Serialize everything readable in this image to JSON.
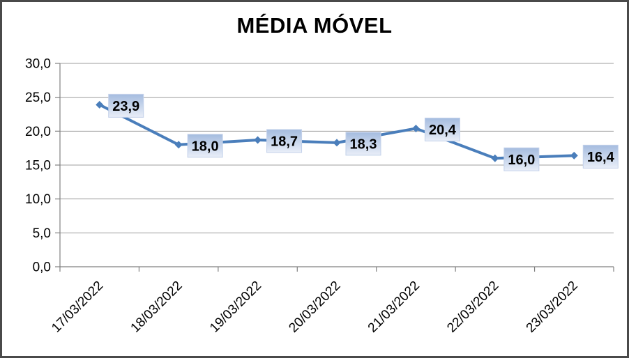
{
  "chart_data": {
    "type": "line",
    "title": "MÉDIA MÓVEL",
    "categories": [
      "17/03/2022",
      "18/03/2022",
      "19/03/2022",
      "20/03/2022",
      "21/03/2022",
      "22/03/2022",
      "23/03/2022"
    ],
    "values": [
      23.9,
      18.0,
      18.7,
      18.3,
      20.4,
      16.0,
      16.4
    ],
    "data_labels": [
      "23,9",
      "18,0",
      "18,7",
      "18,3",
      "20,4",
      "16,0",
      "16,4"
    ],
    "y_tick_labels": [
      "0,0",
      "5,0",
      "10,0",
      "15,0",
      "20,0",
      "25,0",
      "30,0"
    ],
    "ylim": [
      0,
      30
    ],
    "y_tick_step": 5,
    "xlabel": "",
    "ylabel": "",
    "grid": true,
    "legend": "none",
    "marker": "diamond",
    "decimal_separator": ",",
    "colors": {
      "series_line": "#4a7ebb",
      "marker_fill": "#4a7ebb",
      "label_box_top": "#a5bcdf",
      "label_box_bottom": "#e9eef8",
      "label_box_border": "#c3d1ea",
      "gridline": "#9d9d9d",
      "axis": "#808080",
      "text": "#000000",
      "frame_border": "#4a4a4a",
      "background": "#ffffff"
    }
  }
}
